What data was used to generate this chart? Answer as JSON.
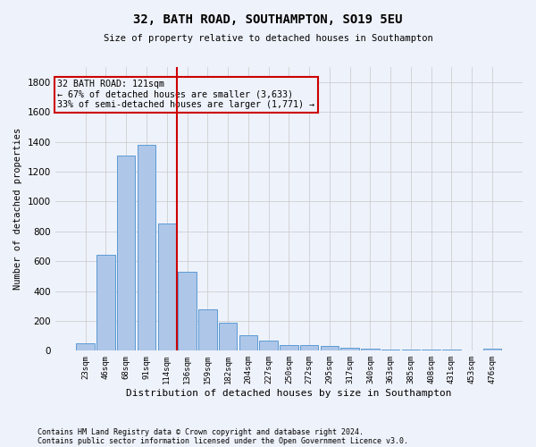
{
  "title_line1": "32, BATH ROAD, SOUTHAMPTON, SO19 5EU",
  "title_line2": "Size of property relative to detached houses in Southampton",
  "xlabel": "Distribution of detached houses by size in Southampton",
  "ylabel": "Number of detached properties",
  "bar_labels": [
    "23sqm",
    "46sqm",
    "68sqm",
    "91sqm",
    "114sqm",
    "136sqm",
    "159sqm",
    "182sqm",
    "204sqm",
    "227sqm",
    "250sqm",
    "272sqm",
    "295sqm",
    "317sqm",
    "340sqm",
    "363sqm",
    "385sqm",
    "408sqm",
    "431sqm",
    "453sqm",
    "476sqm"
  ],
  "bar_values": [
    50,
    640,
    1310,
    1380,
    850,
    530,
    275,
    185,
    105,
    65,
    37,
    37,
    30,
    20,
    15,
    8,
    8,
    5,
    5,
    2,
    15
  ],
  "bar_color": "#aec6e8",
  "bar_edge_color": "#5b9bd5",
  "grid_color": "#c8c8c8",
  "annotation_box_color": "#cc0000",
  "vline_color": "#cc0000",
  "vline_x_index": 4,
  "annotation_text": "32 BATH ROAD: 121sqm\n← 67% of detached houses are smaller (3,633)\n33% of semi-detached houses are larger (1,771) →",
  "ylim": [
    0,
    1900
  ],
  "yticks": [
    0,
    200,
    400,
    600,
    800,
    1000,
    1200,
    1400,
    1600,
    1800
  ],
  "footnote1": "Contains HM Land Registry data © Crown copyright and database right 2024.",
  "footnote2": "Contains public sector information licensed under the Open Government Licence v3.0.",
  "background_color": "#eef2fa"
}
